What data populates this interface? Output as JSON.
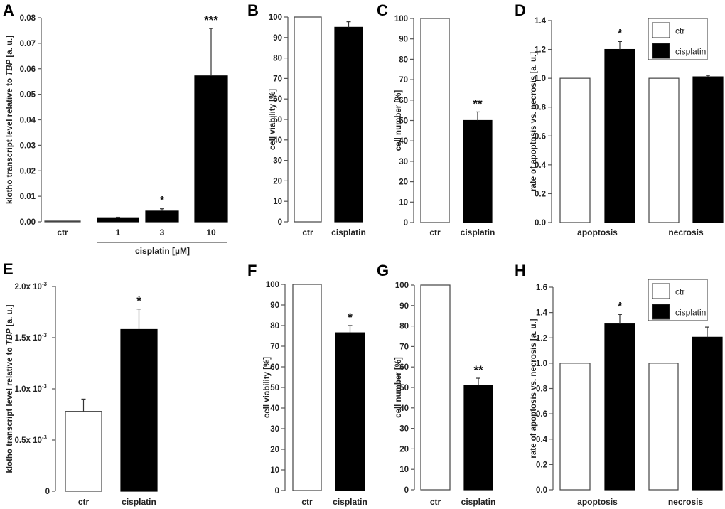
{
  "chart_data": [
    {
      "panel": "A",
      "type": "bar",
      "title": "",
      "ylabel": "klotho transcript level relative to TBP [a. u.]",
      "ylabel_parts": [
        "klotho transcript level relative to ",
        "TBP",
        " [a. u.]"
      ],
      "xlabel": "cisplatin [µM]",
      "categories": [
        "ctr",
        "1",
        "3",
        "10"
      ],
      "values": [
        0.0003,
        0.0016,
        0.0042,
        0.0572
      ],
      "errors_upper": [
        null,
        0.0018,
        0.0051,
        0.0758
      ],
      "fills": [
        "#888888",
        "#000000",
        "#000000",
        "#000000"
      ],
      "significance": [
        "",
        "",
        "*",
        "***"
      ],
      "yticks": [
        "0.00",
        "0.01",
        "0.02",
        "0.03",
        "0.04",
        "0.05",
        "0.06",
        "0.07",
        "0.08"
      ],
      "ylim": [
        0,
        0.08
      ],
      "grid": false
    },
    {
      "panel": "B",
      "type": "bar",
      "ylabel": "cell viability [%]",
      "categories": [
        "ctr",
        "cisplatin"
      ],
      "values": [
        100,
        95
      ],
      "errors_upper": [
        null,
        97.7
      ],
      "fills": [
        "#ffffff",
        "#000000"
      ],
      "significance": [
        "",
        ""
      ],
      "yticks": [
        "0",
        "10",
        "20",
        "30",
        "40",
        "50",
        "60",
        "70",
        "80",
        "90",
        "100"
      ],
      "ylim": [
        0,
        100
      ],
      "grid": false
    },
    {
      "panel": "C",
      "type": "bar",
      "ylabel": "cell number [%]",
      "categories": [
        "ctr",
        "cisplatin"
      ],
      "values": [
        100,
        50
      ],
      "errors_upper": [
        null,
        54.2
      ],
      "fills": [
        "#ffffff",
        "#000000"
      ],
      "significance": [
        "",
        "**"
      ],
      "yticks": [
        "0",
        "10",
        "20",
        "30",
        "40",
        "50",
        "60",
        "70",
        "80",
        "90",
        "100"
      ],
      "ylim": [
        0,
        100
      ],
      "grid": false
    },
    {
      "panel": "D",
      "type": "bar",
      "ylabel": "rate of apoptosis vs. necrosis [a. u.]",
      "categories": [
        "apoptosis",
        "necrosis"
      ],
      "series": [
        {
          "name": "ctr",
          "fill": "#ffffff",
          "values": [
            1.0,
            1.0
          ],
          "errors_upper": [
            null,
            null
          ],
          "significance": [
            "",
            ""
          ]
        },
        {
          "name": "cisplatin",
          "fill": "#000000",
          "values": [
            1.2,
            1.01
          ],
          "errors_upper": [
            1.255,
            1.02
          ],
          "significance": [
            "*",
            ""
          ]
        }
      ],
      "legend": {
        "entries": [
          "ctr",
          "cisplatin"
        ],
        "placement": "top-right"
      },
      "yticks": [
        "0.0",
        "0.2",
        "0.4",
        "0.6",
        "0.8",
        "1.0",
        "1.2",
        "1.4"
      ],
      "ylim": [
        0,
        1.4
      ],
      "grid": false
    },
    {
      "panel": "E",
      "type": "bar",
      "ylabel": "klotho transcript level relative to TBP [a. u.]",
      "ylabel_parts": [
        "klotho transcript level relative to ",
        "TBP",
        " [a. u.]"
      ],
      "categories": [
        "ctr",
        "cisplatin"
      ],
      "values": [
        0.00078,
        0.00158
      ],
      "errors_upper": [
        0.0009,
        0.00178
      ],
      "fills": [
        "#ffffff",
        "#000000"
      ],
      "significance": [
        "",
        "*"
      ],
      "yticks": [
        "0",
        "0.5x 10",
        "1.0x 10",
        "1.5x 10",
        "2.0x 10"
      ],
      "ytick_exponent": "-3",
      "ylim": [
        0,
        0.002
      ],
      "grid": false
    },
    {
      "panel": "F",
      "type": "bar",
      "ylabel": "cell viability [%]",
      "categories": [
        "ctr",
        "cisplatin"
      ],
      "values": [
        100,
        76.5
      ],
      "errors_upper": [
        null,
        80
      ],
      "fills": [
        "#ffffff",
        "#000000"
      ],
      "significance": [
        "",
        "*"
      ],
      "yticks": [
        "0",
        "10",
        "20",
        "30",
        "40",
        "50",
        "60",
        "70",
        "80",
        "90",
        "100"
      ],
      "ylim": [
        0,
        100
      ],
      "grid": false
    },
    {
      "panel": "G",
      "type": "bar",
      "ylabel": "cell number [%]",
      "categories": [
        "ctr",
        "cisplatin"
      ],
      "values": [
        100,
        51
      ],
      "errors_upper": [
        null,
        54.5
      ],
      "fills": [
        "#ffffff",
        "#000000"
      ],
      "significance": [
        "",
        "**"
      ],
      "yticks": [
        "0",
        "10",
        "20",
        "30",
        "40",
        "50",
        "60",
        "70",
        "80",
        "90",
        "100"
      ],
      "ylim": [
        0,
        100
      ],
      "grid": false
    },
    {
      "panel": "H",
      "type": "bar",
      "ylabel": "rate of apoptosis vs. necrosis [a. u.]",
      "categories": [
        "apoptosis",
        "necrosis"
      ],
      "series": [
        {
          "name": "ctr",
          "fill": "#ffffff",
          "values": [
            1.0,
            1.0
          ],
          "errors_upper": [
            null,
            null
          ],
          "significance": [
            "",
            ""
          ]
        },
        {
          "name": "cisplatin",
          "fill": "#000000",
          "values": [
            1.31,
            1.205
          ],
          "errors_upper": [
            1.385,
            1.285
          ],
          "significance": [
            "*",
            ""
          ]
        }
      ],
      "legend": {
        "entries": [
          "ctr",
          "cisplatin"
        ],
        "placement": "top-right"
      },
      "yticks": [
        "0.0",
        "0.2",
        "0.4",
        "0.6",
        "0.8",
        "1.0",
        "1.2",
        "1.4",
        "1.6"
      ],
      "ylim": [
        0,
        1.6
      ],
      "grid": false
    }
  ],
  "colors": {
    "axis": "#555555",
    "bar_dark": "#000000",
    "bar_light": "#ffffff",
    "ctr_A": "#888888"
  }
}
